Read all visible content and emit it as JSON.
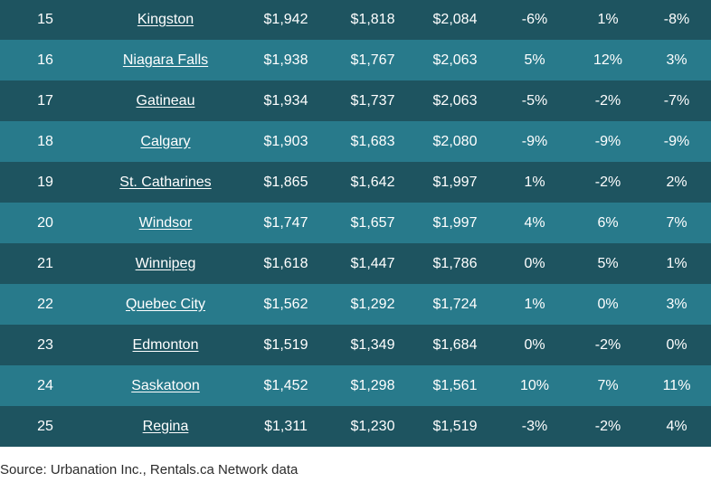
{
  "table": {
    "rows": [
      {
        "rank": "15",
        "city": "Kingston",
        "c1": "$1,942",
        "c2": "$1,818",
        "c3": "$2,084",
        "p1": "-6%",
        "p2": "1%",
        "p3": "-8%"
      },
      {
        "rank": "16",
        "city": "Niagara Falls",
        "c1": "$1,938",
        "c2": "$1,767",
        "c3": "$2,063",
        "p1": "5%",
        "p2": "12%",
        "p3": "3%"
      },
      {
        "rank": "17",
        "city": "Gatineau",
        "c1": "$1,934",
        "c2": "$1,737",
        "c3": "$2,063",
        "p1": "-5%",
        "p2": "-2%",
        "p3": "-7%"
      },
      {
        "rank": "18",
        "city": "Calgary",
        "c1": "$1,903",
        "c2": "$1,683",
        "c3": "$2,080",
        "p1": "-9%",
        "p2": "-9%",
        "p3": "-9%"
      },
      {
        "rank": "19",
        "city": "St. Catharines",
        "c1": "$1,865",
        "c2": "$1,642",
        "c3": "$1,997",
        "p1": "1%",
        "p2": "-2%",
        "p3": "2%"
      },
      {
        "rank": "20",
        "city": "Windsor",
        "c1": "$1,747",
        "c2": "$1,657",
        "c3": "$1,997",
        "p1": "4%",
        "p2": "6%",
        "p3": "7%"
      },
      {
        "rank": "21",
        "city": "Winnipeg",
        "c1": "$1,618",
        "c2": "$1,447",
        "c3": "$1,786",
        "p1": "0%",
        "p2": "5%",
        "p3": "1%"
      },
      {
        "rank": "22",
        "city": "Quebec City",
        "c1": "$1,562",
        "c2": "$1,292",
        "c3": "$1,724",
        "p1": "1%",
        "p2": "0%",
        "p3": "3%"
      },
      {
        "rank": "23",
        "city": "Edmonton",
        "c1": "$1,519",
        "c2": "$1,349",
        "c3": "$1,684",
        "p1": "0%",
        "p2": "-2%",
        "p3": "0%"
      },
      {
        "rank": "24",
        "city": "Saskatoon",
        "c1": "$1,452",
        "c2": "$1,298",
        "c3": "$1,561",
        "p1": "10%",
        "p2": "7%",
        "p3": "11%"
      },
      {
        "rank": "25",
        "city": "Regina",
        "c1": "$1,311",
        "c2": "$1,230",
        "c3": "$1,519",
        "p1": "-3%",
        "p2": "-2%",
        "p3": "4%"
      }
    ]
  },
  "source": "Source: Urbanation Inc., Rentals.ca Network data",
  "colors": {
    "row_dark": "#1e5460",
    "row_light": "#287a8b",
    "text": "#ffffff"
  }
}
